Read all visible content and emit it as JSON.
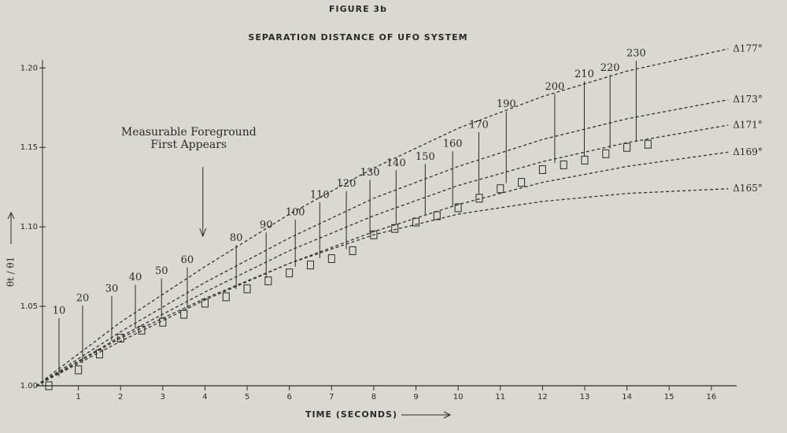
{
  "chart_data": {
    "type": "line",
    "title": "FIGURE 3b",
    "subtitle": "SEPARATION DISTANCE OF UFO SYSTEM",
    "x_label": "TIME (SECONDS)",
    "y_label": "θt / θ1",
    "x": [
      0,
      2,
      4,
      6,
      8,
      10,
      12,
      14,
      16.4
    ],
    "series": [
      {
        "name": "Δ177°",
        "color": "#333333",
        "values": [
          1.0,
          1.04,
          1.075,
          1.108,
          1.137,
          1.162,
          1.182,
          1.198,
          1.212
        ]
      },
      {
        "name": "Δ173°",
        "color": "#333333",
        "values": [
          1.0,
          1.034,
          1.065,
          1.093,
          1.118,
          1.138,
          1.155,
          1.168,
          1.18
        ]
      },
      {
        "name": "Δ171°",
        "color": "#333333",
        "values": [
          1.0,
          1.031,
          1.059,
          1.085,
          1.107,
          1.126,
          1.141,
          1.153,
          1.164
        ]
      },
      {
        "name": "Δ169°",
        "color": "#333333",
        "values": [
          1.0,
          1.028,
          1.054,
          1.077,
          1.097,
          1.114,
          1.128,
          1.138,
          1.147
        ]
      },
      {
        "name": "Δ165°",
        "color": "#333333",
        "values": [
          1.0,
          1.03,
          1.055,
          1.077,
          1.095,
          1.108,
          1.116,
          1.121,
          1.124
        ]
      }
    ],
    "measured": {
      "x": [
        0.3,
        1,
        1.5,
        2,
        2.5,
        3,
        3.5,
        4,
        4.5,
        5,
        5.5,
        6,
        6.5,
        7,
        7.5,
        8,
        8.5,
        9,
        9.5,
        10,
        10.5,
        11,
        11.5,
        12,
        12.5,
        13,
        13.5,
        14,
        14.5
      ],
      "values": [
        1.0,
        1.01,
        1.02,
        1.03,
        1.035,
        1.04,
        1.045,
        1.052,
        1.056,
        1.061,
        1.066,
        1.071,
        1.076,
        1.08,
        1.085,
        1.095,
        1.099,
        1.103,
        1.107,
        1.112,
        1.118,
        1.124,
        1.128,
        1.136,
        1.139,
        1.142,
        1.146,
        1.15,
        1.152
      ]
    },
    "frame_labels": {
      "labels": [
        "10",
        "20",
        "30",
        "40",
        "50",
        "60",
        "80",
        "90",
        "100",
        "110",
        "120",
        "130",
        "140",
        "150",
        "160",
        "170",
        "190",
        "200",
        "210",
        "220",
        "230"
      ],
      "x": [
        0.54,
        1.1,
        1.79,
        2.35,
        2.97,
        3.58,
        4.74,
        5.45,
        6.14,
        6.72,
        7.35,
        7.91,
        8.53,
        9.22,
        9.87,
        10.49,
        11.14,
        12.29,
        12.99,
        13.6,
        14.22
      ],
      "y": [
        1.047,
        1.055,
        1.061,
        1.068,
        1.072,
        1.079,
        1.093,
        1.101,
        1.109,
        1.12,
        1.127,
        1.134,
        1.14,
        1.144,
        1.152,
        1.164,
        1.177,
        1.188,
        1.196,
        1.2,
        1.209
      ]
    },
    "annotation": {
      "lines": [
        "Measurable Foreground",
        "First Appears"
      ],
      "x": 3.95
    },
    "xlim": [
      0,
      16.6
    ],
    "ylim": [
      1.0,
      1.215
    ],
    "xticks": [
      1,
      2,
      3,
      4,
      5,
      6,
      7,
      8,
      9,
      10,
      11,
      12,
      13,
      14,
      15,
      16
    ],
    "yticks": [
      {
        "value": 1.0,
        "label": "1.00"
      },
      {
        "value": 1.05,
        "label": "1.05"
      },
      {
        "value": 1.1,
        "label": "1.10"
      },
      {
        "value": 1.15,
        "label": "1.15"
      },
      {
        "value": 1.2,
        "label": "1.20"
      }
    ]
  }
}
